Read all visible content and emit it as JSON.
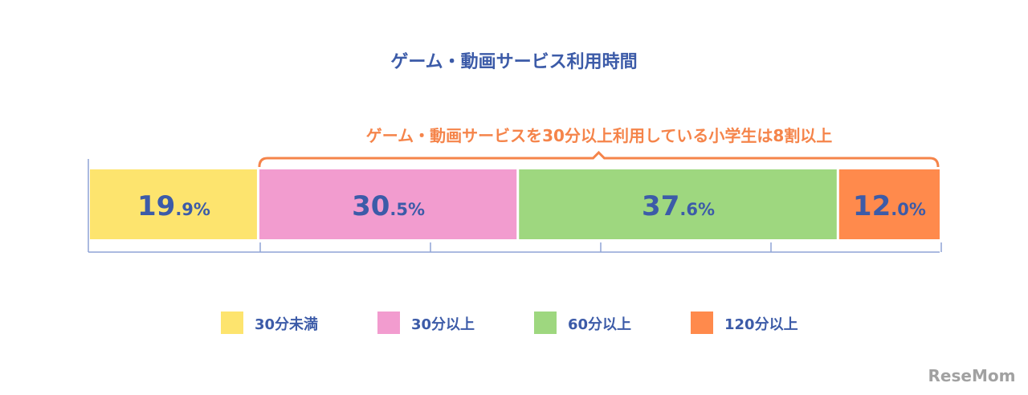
{
  "chart_data": {
    "type": "bar",
    "orientation": "horizontal-stacked",
    "title": "ゲーム・動画サービス利用時間",
    "annotation": "ゲーム・動画サービスを30分以上利用している小学生は8割以上",
    "xlim": [
      0,
      100
    ],
    "tick_step": 20,
    "legend_position": "bottom",
    "series": [
      {
        "name": "30分未満",
        "value": 19.9,
        "int": "19",
        "dec": ".9%",
        "color": "#fde46e"
      },
      {
        "name": "30分以上",
        "value": 30.5,
        "int": "30",
        "dec": ".5%",
        "color": "#f29ccf"
      },
      {
        "name": "60分以上",
        "value": 37.6,
        "int": "37",
        "dec": ".6%",
        "color": "#9ed77f"
      },
      {
        "name": "120分以上",
        "value": 12.0,
        "int": "12",
        "dec": ".0%",
        "color": "#ff8a4c"
      }
    ]
  },
  "colors": {
    "title": "#3c5ba8",
    "annotation": "#f5844a",
    "axis": "#8fa3d6"
  },
  "logo": "ReseMom"
}
